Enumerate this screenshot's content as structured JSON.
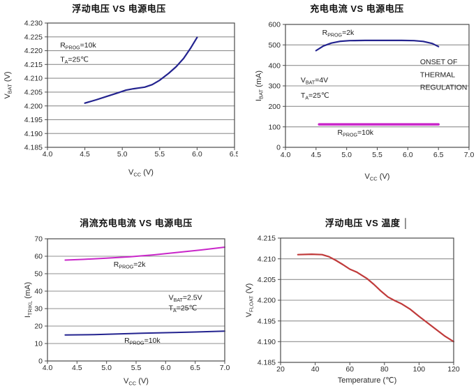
{
  "page": {
    "background": "#ffffff",
    "grid_color": "#8f8f8f",
    "frame_color": "#4a4a4a"
  },
  "chart_data": [
    {
      "type": "line",
      "title": "浮动电压 VS 电源电压",
      "xlabel_parts": [
        {
          "t": "V"
        },
        {
          "t": "CC",
          "sub": true
        },
        {
          "t": " (V)"
        }
      ],
      "ylabel_parts": [
        {
          "t": "V"
        },
        {
          "t": "BAT",
          "sub": true
        },
        {
          "t": " (V)"
        }
      ],
      "xlim": [
        4.0,
        6.5
      ],
      "ylim": [
        4.185,
        4.23
      ],
      "grid": "horizontal",
      "legend_position": "none",
      "xticks": [
        {
          "v": 4.0,
          "label": "4.0"
        },
        {
          "v": 4.5,
          "label": "4.5"
        },
        {
          "v": 5.0,
          "label": "5.0"
        },
        {
          "v": 5.5,
          "label": "5.5"
        },
        {
          "v": 6.0,
          "label": "6.0"
        },
        {
          "v": 6.5,
          "label": "6.5"
        }
      ],
      "yticks": [
        {
          "v": 4.185,
          "label": "4.185"
        },
        {
          "v": 4.19,
          "label": "4.190"
        },
        {
          "v": 4.195,
          "label": "4.195"
        },
        {
          "v": 4.2,
          "label": "4.200"
        },
        {
          "v": 4.205,
          "label": "4.205"
        },
        {
          "v": 4.21,
          "label": "4.210"
        },
        {
          "v": 4.215,
          "label": "4.215"
        },
        {
          "v": 4.22,
          "label": "4.220"
        },
        {
          "v": 4.225,
          "label": "4.225"
        },
        {
          "v": 4.23,
          "label": "4.230"
        }
      ],
      "series": [
        {
          "name": "RPROG=10k",
          "color": "#23238f",
          "width": 2.2,
          "points": [
            [
              4.5,
              4.201
            ],
            [
              4.65,
              4.2022
            ],
            [
              4.8,
              4.2035
            ],
            [
              4.95,
              4.2048
            ],
            [
              5.05,
              4.2057
            ],
            [
              5.15,
              4.2062
            ],
            [
              5.3,
              4.2068
            ],
            [
              5.4,
              4.2077
            ],
            [
              5.5,
              4.2093
            ],
            [
              5.62,
              4.2118
            ],
            [
              5.72,
              4.2142
            ],
            [
              5.82,
              4.2172
            ],
            [
              5.91,
              4.2208
            ],
            [
              6.0,
              4.2248
            ]
          ]
        }
      ],
      "annotations": [
        {
          "x": 4.17,
          "y": 4.2212,
          "anchor": "start",
          "parts": [
            {
              "t": "R"
            },
            {
              "t": "PROG",
              "sub": true
            },
            {
              "t": "=10k"
            }
          ]
        },
        {
          "x": 4.17,
          "y": 4.216,
          "anchor": "start",
          "parts": [
            {
              "t": "T"
            },
            {
              "t": "A",
              "sub": true
            },
            {
              "t": "=25℃"
            }
          ]
        }
      ]
    },
    {
      "type": "line",
      "title": "充电电流 VS  电源电压",
      "xlabel_parts": [
        {
          "t": "V"
        },
        {
          "t": "CC",
          "sub": true
        },
        {
          "t": " (V)"
        }
      ],
      "ylabel_parts": [
        {
          "t": "I"
        },
        {
          "t": "BAT",
          "sub": true
        },
        {
          "t": " (mA)"
        }
      ],
      "xlim": [
        4.0,
        7.0
      ],
      "ylim": [
        0,
        600
      ],
      "grid": "horizontal",
      "legend_position": "none",
      "xticks": [
        {
          "v": 4.0,
          "label": "4.0"
        },
        {
          "v": 4.5,
          "label": "4.5"
        },
        {
          "v": 5.0,
          "label": "5.0"
        },
        {
          "v": 5.5,
          "label": "5.5"
        },
        {
          "v": 6.0,
          "label": "6.0"
        },
        {
          "v": 6.5,
          "label": "6.5"
        },
        {
          "v": 7.0,
          "label": "7.0"
        }
      ],
      "yticks": [
        {
          "v": 0,
          "label": "0"
        },
        {
          "v": 100,
          "label": "100"
        },
        {
          "v": 200,
          "label": "200"
        },
        {
          "v": 300,
          "label": "300"
        },
        {
          "v": 400,
          "label": "400"
        },
        {
          "v": 500,
          "label": "500"
        },
        {
          "v": 600,
          "label": "600"
        }
      ],
      "series": [
        {
          "name": "RPROG=2k",
          "color": "#23238f",
          "width": 2.2,
          "points": [
            [
              4.5,
              472
            ],
            [
              4.62,
              495
            ],
            [
              4.75,
              509
            ],
            [
              4.9,
              518
            ],
            [
              5.05,
              521
            ],
            [
              5.3,
              522
            ],
            [
              5.6,
              522
            ],
            [
              5.9,
              522
            ],
            [
              6.1,
              521
            ],
            [
              6.25,
              517
            ],
            [
              6.4,
              507
            ],
            [
              6.5,
              492
            ]
          ]
        },
        {
          "name": "RPROG=10k",
          "color": "#c926c9",
          "width": 3.5,
          "points": [
            [
              4.55,
              112
            ],
            [
              5.0,
              112
            ],
            [
              5.5,
              112
            ],
            [
              6.0,
              112
            ],
            [
              6.5,
              112
            ]
          ]
        }
      ],
      "annotations": [
        {
          "x": 4.6,
          "y": 549,
          "anchor": "start",
          "parts": [
            {
              "t": "R"
            },
            {
              "t": "PROG",
              "sub": true
            },
            {
              "t": "=2k"
            }
          ]
        },
        {
          "x": 4.25,
          "y": 317,
          "anchor": "start",
          "parts": [
            {
              "t": "V"
            },
            {
              "t": "BAT",
              "sub": true
            },
            {
              "t": "=4V"
            }
          ]
        },
        {
          "x": 4.25,
          "y": 242,
          "anchor": "start",
          "parts": [
            {
              "t": "T"
            },
            {
              "t": "A",
              "sub": true
            },
            {
              "t": "=25℃"
            }
          ]
        },
        {
          "x": 6.2,
          "y": 405,
          "anchor": "start",
          "parts": [
            {
              "t": "ONSET OF"
            }
          ]
        },
        {
          "x": 6.2,
          "y": 343,
          "anchor": "start",
          "parts": [
            {
              "t": "THERMAL"
            }
          ]
        },
        {
          "x": 6.2,
          "y": 282,
          "anchor": "start",
          "parts": [
            {
              "t": "REGULATION"
            }
          ]
        },
        {
          "x": 4.85,
          "y": 62,
          "anchor": "start",
          "parts": [
            {
              "t": "R"
            },
            {
              "t": "PROG",
              "sub": true
            },
            {
              "t": "=10k"
            }
          ]
        }
      ]
    },
    {
      "type": "line",
      "title": "涓流充电电流 VS 电源电压",
      "xlabel_parts": [
        {
          "t": "V"
        },
        {
          "t": "CC",
          "sub": true
        },
        {
          "t": " (V)"
        }
      ],
      "ylabel_parts": [
        {
          "t": "I"
        },
        {
          "t": "TRIKL",
          "sub": true
        },
        {
          "t": " (mA)"
        }
      ],
      "xlim": [
        4.0,
        7.0
      ],
      "ylim": [
        0,
        70
      ],
      "grid": "horizontal",
      "legend_position": "none",
      "xticks": [
        {
          "v": 4.0,
          "label": "4.0"
        },
        {
          "v": 4.5,
          "label": "4.5"
        },
        {
          "v": 5.0,
          "label": "5.0"
        },
        {
          "v": 5.5,
          "label": "5.5"
        },
        {
          "v": 6.0,
          "label": "6.0"
        },
        {
          "v": 6.5,
          "label": "6.5"
        },
        {
          "v": 7.0,
          "label": "7.0"
        }
      ],
      "yticks": [
        {
          "v": 0,
          "label": "0"
        },
        {
          "v": 10,
          "label": "10"
        },
        {
          "v": 20,
          "label": "20"
        },
        {
          "v": 30,
          "label": "30"
        },
        {
          "v": 40,
          "label": "40"
        },
        {
          "v": 50,
          "label": "50"
        },
        {
          "v": 60,
          "label": "60"
        },
        {
          "v": 70,
          "label": "70"
        }
      ],
      "series": [
        {
          "name": "RPROG=2k",
          "color": "#c926c9",
          "width": 2,
          "points": [
            [
              4.3,
              57.8
            ],
            [
              4.6,
              58.2
            ],
            [
              5.0,
              58.9
            ],
            [
              5.4,
              59.7
            ],
            [
              5.8,
              60.8
            ],
            [
              6.2,
              62.2
            ],
            [
              6.6,
              63.6
            ],
            [
              7.0,
              65.2
            ]
          ]
        },
        {
          "name": "RPROG=10k",
          "color": "#23238f",
          "width": 2,
          "points": [
            [
              4.3,
              14.9
            ],
            [
              4.8,
              15.1
            ],
            [
              5.2,
              15.5
            ],
            [
              5.6,
              15.9
            ],
            [
              6.0,
              16.2
            ],
            [
              6.5,
              16.6
            ],
            [
              7.0,
              17.1
            ]
          ]
        }
      ],
      "annotations": [
        {
          "x": 5.12,
          "y": 54.0,
          "anchor": "start",
          "parts": [
            {
              "t": "R"
            },
            {
              "t": "PROG",
              "sub": true
            },
            {
              "t": "=2k"
            }
          ]
        },
        {
          "x": 6.05,
          "y": 35.0,
          "anchor": "start",
          "parts": [
            {
              "t": "V"
            },
            {
              "t": "BAT",
              "sub": true
            },
            {
              "t": "=2.5V"
            }
          ]
        },
        {
          "x": 6.05,
          "y": 29.0,
          "anchor": "start",
          "parts": [
            {
              "t": "T"
            },
            {
              "t": "A",
              "sub": true
            },
            {
              "t": "=25℃"
            }
          ]
        },
        {
          "x": 5.3,
          "y": 10.5,
          "anchor": "start",
          "parts": [
            {
              "t": "R"
            },
            {
              "t": "PROG",
              "sub": true
            },
            {
              "t": "=10k"
            }
          ]
        }
      ]
    },
    {
      "type": "line",
      "title": "浮动电压 VS 温度 │",
      "xlabel_parts": [
        {
          "t": "Temperature (℃)"
        }
      ],
      "ylabel_parts": [
        {
          "t": "V"
        },
        {
          "t": "FLOAT",
          "sub": true
        },
        {
          "t": " (V)"
        }
      ],
      "xlim": [
        20,
        120
      ],
      "ylim": [
        4.185,
        4.215
      ],
      "grid": "horizontal",
      "legend_position": "none",
      "xticks": [
        {
          "v": 20,
          "label": "20"
        },
        {
          "v": 40,
          "label": "40"
        },
        {
          "v": 60,
          "label": "60"
        },
        {
          "v": 80,
          "label": "80"
        },
        {
          "v": 100,
          "label": "100"
        },
        {
          "v": 120,
          "label": "120"
        }
      ],
      "yticks": [
        {
          "v": 4.185,
          "label": "4.185"
        },
        {
          "v": 4.19,
          "label": "4.190"
        },
        {
          "v": 4.195,
          "label": "4.195"
        },
        {
          "v": 4.2,
          "label": "4.200"
        },
        {
          "v": 4.205,
          "label": "4.205"
        },
        {
          "v": 4.21,
          "label": "4.210"
        },
        {
          "v": 4.215,
          "label": "4.215"
        }
      ],
      "series": [
        {
          "name": "VFLOAT",
          "color": "#c03a3a",
          "width": 2.2,
          "points": [
            [
              30,
              4.211
            ],
            [
              38,
              4.2111
            ],
            [
              44,
              4.211
            ],
            [
              48,
              4.2105
            ],
            [
              52,
              4.2096
            ],
            [
              56,
              4.2086
            ],
            [
              60,
              4.2075
            ],
            [
              64,
              4.2068
            ],
            [
              67,
              4.206
            ],
            [
              70,
              4.2052
            ],
            [
              74,
              4.2038
            ],
            [
              78,
              4.2022
            ],
            [
              82,
              4.2008
            ],
            [
              86,
              4.1999
            ],
            [
              90,
              4.1991
            ],
            [
              95,
              4.1978
            ],
            [
              100,
              4.1961
            ],
            [
              105,
              4.1945
            ],
            [
              110,
              4.1929
            ],
            [
              115,
              4.1913
            ],
            [
              120,
              4.19
            ]
          ]
        }
      ],
      "annotations": []
    }
  ]
}
